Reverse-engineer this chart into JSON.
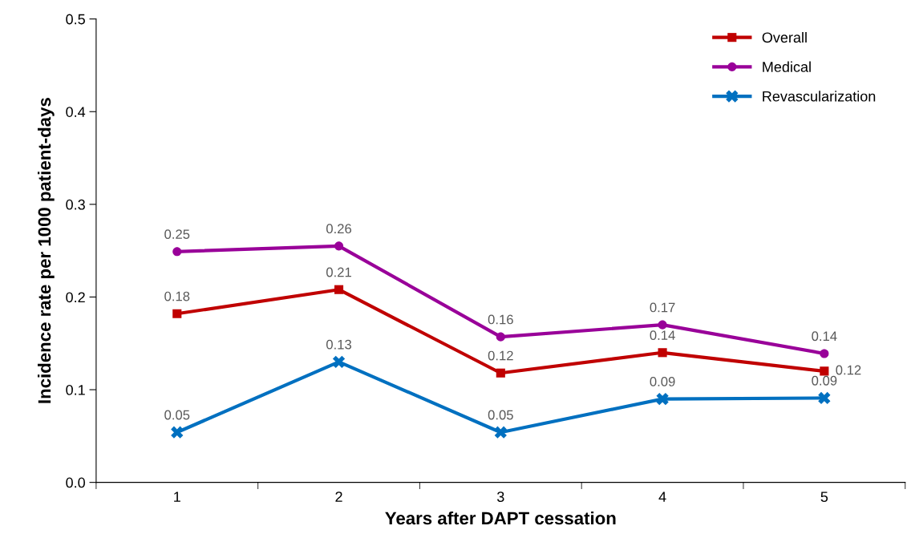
{
  "chart_data": {
    "type": "line",
    "xlabel": "Years after DAPT cessation",
    "ylabel": "Incidence rate per 1000 patient-days",
    "categories": [
      "1",
      "2",
      "3",
      "4",
      "5"
    ],
    "ylim": [
      0,
      0.5
    ],
    "yticks": [
      {
        "value": 0,
        "label": "0.0"
      },
      {
        "value": 0.1,
        "label": "0.1"
      },
      {
        "value": 0.2,
        "label": "0.2"
      },
      {
        "value": 0.3,
        "label": "0.3"
      },
      {
        "value": 0.4,
        "label": "0.4"
      },
      {
        "value": 0.5,
        "label": "0.5"
      }
    ],
    "grid": false,
    "legend": "top right",
    "line_style": "solid",
    "series": [
      {
        "name": "Overall",
        "color": "#c00000",
        "marker": "square",
        "values": [
          0.182,
          0.208,
          0.118,
          0.14,
          0.12
        ],
        "value_labels": [
          "0.18",
          "0.21",
          "0.12",
          "0.14",
          "0.12"
        ]
      },
      {
        "name": "Medical",
        "color": "#990099",
        "marker": "circle",
        "values": [
          0.249,
          0.255,
          0.157,
          0.17,
          0.139
        ],
        "value_labels": [
          "0.25",
          "0.26",
          "0.16",
          "0.17",
          "0.14"
        ]
      },
      {
        "name": "Revascularization",
        "color": "#0070c0",
        "marker": "cross",
        "values": [
          0.054,
          0.13,
          0.054,
          0.09,
          0.091
        ],
        "value_labels": [
          "0.05",
          "0.13",
          "0.05",
          "0.09",
          "0.09"
        ]
      }
    ]
  }
}
